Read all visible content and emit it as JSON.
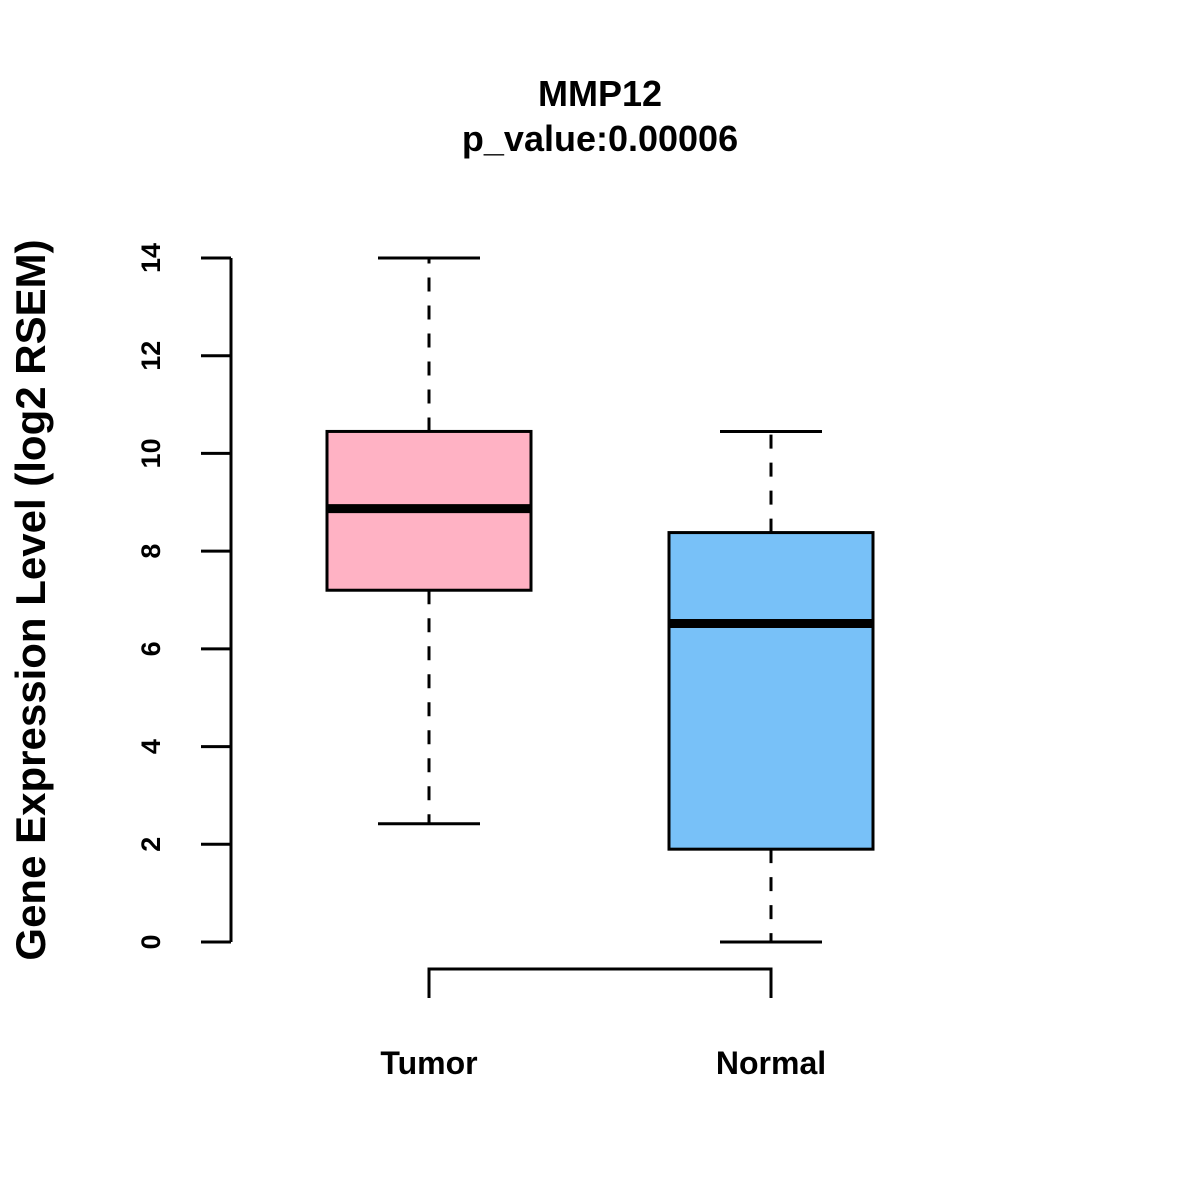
{
  "chart_data": {
    "type": "boxplot",
    "title": "MMP12",
    "subtitle": "p_value:0.00006",
    "xlabel": "",
    "ylabel": "Gene Expression Level (log2 RSEM)",
    "ylim": [
      0,
      14
    ],
    "yticks": [
      0,
      2,
      4,
      6,
      8,
      10,
      12,
      14
    ],
    "ytick_labels": [
      "0",
      "2",
      "4",
      "6",
      "8",
      "10",
      "12",
      "14"
    ],
    "categories": [
      "Tumor",
      "Normal"
    ],
    "boxes": [
      {
        "name": "Tumor",
        "min": 2.42,
        "q1": 7.2,
        "median": 8.87,
        "q3": 10.45,
        "max": 14.0,
        "color": "#FFB2C4"
      },
      {
        "name": "Normal",
        "min": 0.0,
        "q1": 1.9,
        "median": 6.52,
        "q3": 8.38,
        "max": 10.45,
        "color": "#78C1F8"
      }
    ],
    "comparison_bracket": {
      "from": "Tumor",
      "to": "Normal"
    },
    "grid": false,
    "legend": "none"
  }
}
